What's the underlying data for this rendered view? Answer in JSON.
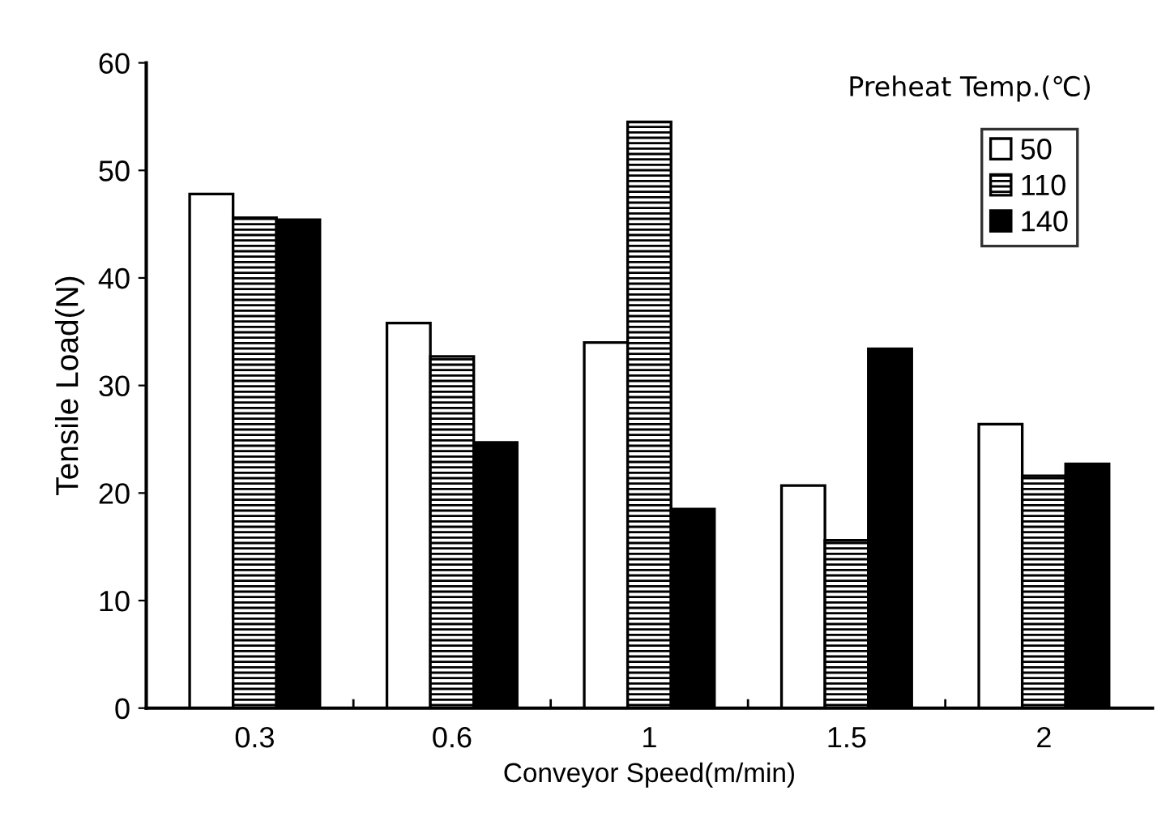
{
  "chart_data": {
    "type": "bar",
    "xlabel": "Conveyor Speed(m/min)",
    "ylabel": "Tensile Load(N)",
    "legend_title": "Preheat Temp.(℃)",
    "categories": [
      "0.3",
      "0.6",
      "1",
      "1.5",
      "2"
    ],
    "series": [
      {
        "name": "50",
        "color": "#ffffff",
        "values": [
          47.8,
          35.8,
          34.0,
          20.7,
          26.4
        ]
      },
      {
        "name": "110",
        "color": "#000000",
        "values": [
          45.6,
          32.7,
          54.5,
          15.6,
          21.6
        ]
      },
      {
        "name": "140",
        "color": "#000000",
        "values": [
          45.4,
          24.7,
          18.5,
          33.4,
          22.7
        ]
      }
    ],
    "ylim": [
      0,
      60
    ],
    "yticks": [
      0,
      10,
      20,
      30,
      40,
      50,
      60
    ],
    "grid": false,
    "legend": "top right"
  }
}
